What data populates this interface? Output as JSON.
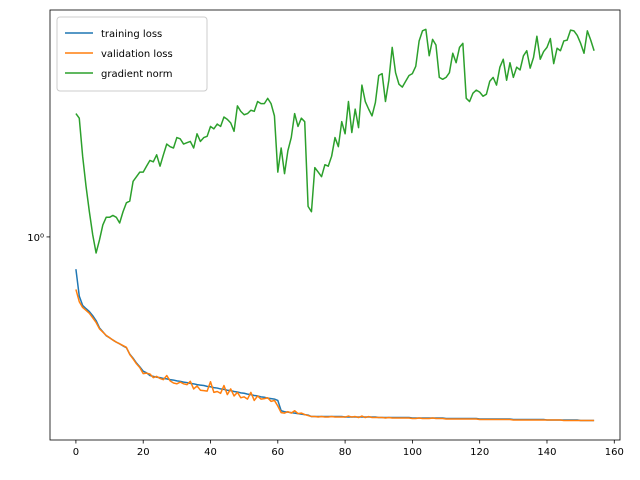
{
  "chart_data": {
    "type": "line",
    "log_y": true,
    "legend": "upper left",
    "x": [
      0,
      1,
      2,
      3,
      4,
      5,
      6,
      7,
      8,
      9,
      10,
      11,
      12,
      13,
      14,
      15,
      16,
      17,
      18,
      19,
      20,
      21,
      22,
      23,
      24,
      25,
      26,
      27,
      28,
      29,
      30,
      31,
      32,
      33,
      34,
      35,
      36,
      37,
      38,
      39,
      40,
      41,
      42,
      43,
      44,
      45,
      46,
      47,
      48,
      49,
      50,
      51,
      52,
      53,
      54,
      55,
      56,
      57,
      58,
      59,
      60,
      61,
      62,
      63,
      64,
      65,
      66,
      67,
      68,
      69,
      70,
      71,
      72,
      73,
      74,
      75,
      76,
      77,
      78,
      79,
      80,
      81,
      82,
      83,
      84,
      85,
      86,
      87,
      88,
      89,
      90,
      91,
      92,
      93,
      94,
      95,
      96,
      97,
      98,
      99,
      100,
      101,
      102,
      103,
      104,
      105,
      106,
      107,
      108,
      109,
      110,
      111,
      112,
      113,
      114,
      115,
      116,
      117,
      118,
      119,
      120,
      121,
      122,
      123,
      124,
      125,
      126,
      127,
      128,
      129,
      130,
      131,
      132,
      133,
      134,
      135,
      136,
      137,
      138,
      139,
      140,
      141,
      142,
      143,
      144,
      145,
      146,
      147,
      148,
      149,
      150,
      151,
      152,
      153,
      154
    ],
    "series": [
      {
        "name": "training loss",
        "color": "#1f77b4",
        "values": [
          0.855,
          0.75,
          0.717,
          0.706,
          0.696,
          0.682,
          0.666,
          0.643,
          0.631,
          0.619,
          0.613,
          0.606,
          0.6,
          0.595,
          0.589,
          0.584,
          0.566,
          0.555,
          0.542,
          0.532,
          0.521,
          0.517,
          0.51,
          0.508,
          0.506,
          0.505,
          0.503,
          0.502,
          0.5,
          0.499,
          0.497,
          0.496,
          0.494,
          0.493,
          0.491,
          0.49,
          0.488,
          0.487,
          0.486,
          0.484,
          0.483,
          0.481,
          0.48,
          0.478,
          0.477,
          0.475,
          0.474,
          0.472,
          0.471,
          0.469,
          0.468,
          0.466,
          0.465,
          0.463,
          0.462,
          0.46,
          0.459,
          0.457,
          0.456,
          0.455,
          0.452,
          0.43,
          0.428,
          0.427,
          0.426,
          0.425,
          0.424,
          0.423,
          0.422,
          0.421,
          0.418,
          0.418,
          0.418,
          0.418,
          0.418,
          0.418,
          0.418,
          0.418,
          0.418,
          0.418,
          0.417,
          0.417,
          0.417,
          0.417,
          0.417,
          0.417,
          0.417,
          0.417,
          0.417,
          0.417,
          0.416,
          0.416,
          0.416,
          0.416,
          0.416,
          0.416,
          0.416,
          0.416,
          0.416,
          0.416,
          0.415,
          0.415,
          0.415,
          0.415,
          0.415,
          0.415,
          0.415,
          0.415,
          0.415,
          0.415,
          0.414,
          0.414,
          0.414,
          0.414,
          0.414,
          0.414,
          0.414,
          0.414,
          0.414,
          0.414,
          0.413,
          0.413,
          0.413,
          0.413,
          0.413,
          0.413,
          0.413,
          0.413,
          0.413,
          0.413,
          0.412,
          0.412,
          0.412,
          0.412,
          0.412,
          0.412,
          0.412,
          0.412,
          0.412,
          0.412,
          0.411,
          0.411,
          0.411,
          0.411,
          0.411,
          0.411,
          0.411,
          0.411,
          0.411,
          0.411,
          0.41,
          0.41,
          0.41,
          0.41,
          0.41
        ]
      },
      {
        "name": "validation loss",
        "color": "#ff7f0e",
        "values": [
          0.775,
          0.73,
          0.71,
          0.7,
          0.69,
          0.675,
          0.66,
          0.64,
          0.63,
          0.62,
          0.613,
          0.606,
          0.6,
          0.595,
          0.59,
          0.585,
          0.565,
          0.553,
          0.54,
          0.53,
          0.515,
          0.516,
          0.514,
          0.505,
          0.508,
          0.503,
          0.5,
          0.51,
          0.497,
          0.492,
          0.49,
          0.494,
          0.49,
          0.488,
          0.496,
          0.478,
          0.485,
          0.475,
          0.474,
          0.473,
          0.495,
          0.47,
          0.472,
          0.468,
          0.486,
          0.465,
          0.478,
          0.462,
          0.47,
          0.458,
          0.46,
          0.455,
          0.47,
          0.452,
          0.462,
          0.455,
          0.456,
          0.458,
          0.45,
          0.452,
          0.44,
          0.426,
          0.425,
          0.428,
          0.425,
          0.43,
          0.424,
          0.425,
          0.422,
          0.42,
          0.418,
          0.418,
          0.417,
          0.418,
          0.417,
          0.417,
          0.418,
          0.417,
          0.417,
          0.417,
          0.417,
          0.419,
          0.417,
          0.418,
          0.416,
          0.419,
          0.416,
          0.418,
          0.416,
          0.416,
          0.416,
          0.416,
          0.415,
          0.416,
          0.415,
          0.415,
          0.415,
          0.415,
          0.415,
          0.415,
          0.414,
          0.414,
          0.415,
          0.414,
          0.414,
          0.414,
          0.415,
          0.414,
          0.414,
          0.414,
          0.413,
          0.413,
          0.413,
          0.413,
          0.413,
          0.413,
          0.413,
          0.413,
          0.413,
          0.413,
          0.412,
          0.412,
          0.412,
          0.412,
          0.412,
          0.412,
          0.412,
          0.412,
          0.412,
          0.412,
          0.411,
          0.411,
          0.411,
          0.411,
          0.411,
          0.411,
          0.411,
          0.411,
          0.411,
          0.411,
          0.411,
          0.411,
          0.411,
          0.411,
          0.411,
          0.41,
          0.41,
          0.41,
          0.41,
          0.41,
          0.41,
          0.41,
          0.41,
          0.41,
          0.41
        ]
      },
      {
        "name": "gradient norm",
        "color": "#2ca02c",
        "values": [
          1.82,
          1.78,
          1.48,
          1.28,
          1.13,
          1.01,
          0.925,
          0.985,
          1.06,
          1.1,
          1.1,
          1.11,
          1.1,
          1.07,
          1.13,
          1.18,
          1.19,
          1.31,
          1.34,
          1.37,
          1.37,
          1.41,
          1.45,
          1.44,
          1.49,
          1.41,
          1.49,
          1.57,
          1.55,
          1.54,
          1.62,
          1.61,
          1.57,
          1.58,
          1.59,
          1.54,
          1.65,
          1.59,
          1.62,
          1.63,
          1.71,
          1.69,
          1.73,
          1.71,
          1.79,
          1.77,
          1.74,
          1.67,
          1.89,
          1.84,
          1.81,
          1.82,
          1.85,
          1.84,
          1.93,
          1.91,
          1.91,
          1.96,
          1.91,
          1.8,
          1.37,
          1.54,
          1.36,
          1.52,
          1.62,
          1.82,
          1.71,
          1.78,
          1.75,
          1.16,
          1.13,
          1.4,
          1.37,
          1.34,
          1.42,
          1.41,
          1.48,
          1.62,
          1.55,
          1.75,
          1.65,
          1.93,
          1.66,
          1.86,
          1.7,
          2.09,
          1.93,
          1.86,
          1.8,
          1.92,
          2.19,
          2.21,
          1.93,
          2.14,
          2.51,
          2.22,
          2.1,
          2.07,
          2.13,
          2.19,
          2.21,
          2.29,
          2.59,
          2.72,
          2.74,
          2.41,
          2.61,
          2.54,
          2.17,
          2.15,
          2.17,
          2.22,
          2.44,
          2.33,
          2.51,
          2.56,
          1.96,
          1.93,
          2.01,
          2.04,
          2.02,
          1.98,
          2.0,
          2.13,
          2.17,
          2.09,
          2.28,
          2.37,
          2.14,
          2.33,
          2.17,
          2.28,
          2.25,
          2.41,
          2.47,
          2.27,
          2.39,
          2.65,
          2.37,
          2.46,
          2.51,
          2.62,
          2.32,
          2.5,
          2.47,
          2.59,
          2.6,
          2.73,
          2.72,
          2.66,
          2.56,
          2.44,
          2.72,
          2.6,
          2.47
        ]
      }
    ],
    "xlim": [
      -7.7,
      161.7
    ],
    "xticks": [
      0,
      20,
      40,
      60,
      80,
      100,
      120,
      140,
      160
    ],
    "ylim": [
      0.373,
      3.01
    ],
    "yticks": [
      {
        "value": 1,
        "label": "10⁰"
      }
    ]
  }
}
